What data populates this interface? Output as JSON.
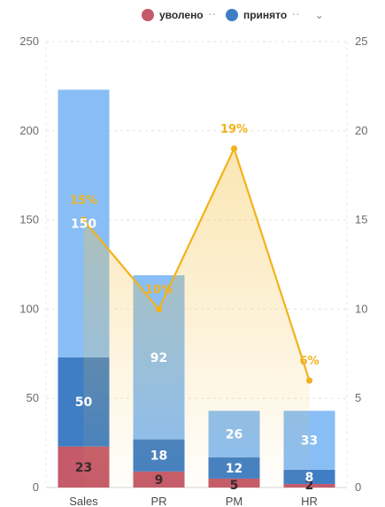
{
  "legend": {
    "items": [
      {
        "label": "уволено",
        "color": "#c45a6a",
        "more": "··"
      },
      {
        "label": "принято",
        "color": "#3f7ec4",
        "more": "··"
      }
    ],
    "caret": "⌄"
  },
  "chart_data": {
    "type": "bar",
    "stacked": true,
    "categories": [
      "Sales",
      "PR",
      "PM",
      "HR"
    ],
    "series": [
      {
        "name": "уволено",
        "values": [
          23,
          9,
          5,
          2
        ],
        "color": "#c45a6a"
      },
      {
        "name": "принято",
        "values": [
          50,
          18,
          12,
          8
        ],
        "color": "#3f7ec4"
      },
      {
        "values": [
          150,
          92,
          26,
          33
        ],
        "color": "#88bef5"
      }
    ],
    "line_series": {
      "axis": "right",
      "values": [
        15,
        10,
        19,
        6
      ],
      "labels": [
        "15%",
        "10%",
        "19%",
        "6%"
      ],
      "color": "#f2b21b"
    },
    "y_left": {
      "min": 0,
      "max": 250,
      "ticks": [
        0,
        50,
        100,
        150,
        200,
        250
      ]
    },
    "y_right": {
      "min": 0,
      "max": 25,
      "ticks": [
        0,
        5,
        10,
        15,
        20,
        25
      ]
    },
    "grid": true,
    "legend_position": "top-right"
  }
}
